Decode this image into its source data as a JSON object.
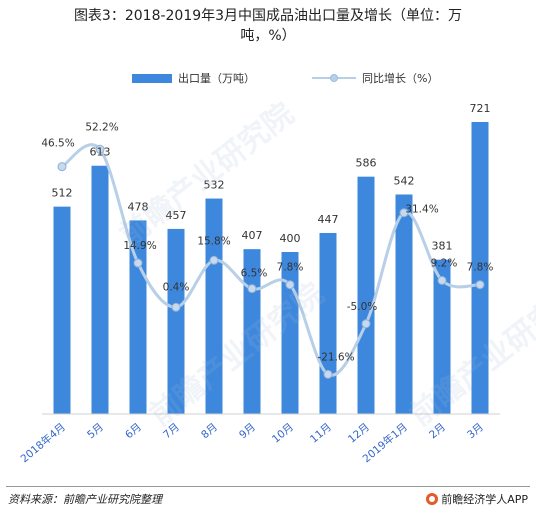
{
  "title_line1": "图表3：2018-2019年3月中国成品油出口量及增长（单位：万",
  "title_line2": "吨，%）",
  "legend": {
    "bar_label": "出口量（万吨）",
    "line_label": "同比增长（%）"
  },
  "source": "资料来源：前瞻产业研究院整理",
  "brand": "前瞻经济学人APP",
  "watermark": "前瞻产业研究院",
  "colors": {
    "bar": "#3d88dd",
    "line": "#b8cfe8",
    "marker_fill": "#c6d9ef",
    "marker_stroke": "#8fb0d8"
  },
  "chart_data": {
    "type": "bar",
    "categories": [
      "2018年4月",
      "5月",
      "6月",
      "7月",
      "8月",
      "9月",
      "10月",
      "11月",
      "12月",
      "2019年1月",
      "2月",
      "3月"
    ],
    "series": [
      {
        "name": "出口量（万吨）",
        "type": "bar",
        "values": [
          512,
          613,
          478,
          457,
          532,
          407,
          400,
          447,
          586,
          542,
          381,
          721
        ]
      },
      {
        "name": "同比增长（%）",
        "type": "line",
        "values": [
          46.5,
          52.2,
          14.9,
          0.4,
          15.8,
          6.5,
          7.8,
          -21.6,
          -5.0,
          31.4,
          9.2,
          7.8
        ]
      }
    ],
    "bar_labels": [
      "512",
      "613",
      "478",
      "457",
      "532",
      "407",
      "400",
      "447",
      "586",
      "542",
      "381",
      "721"
    ],
    "line_labels": [
      "46.5%",
      "52.2%",
      "14.9%",
      "0.4%",
      "15.8%",
      "6.5%",
      "7.8%",
      "-21.6%",
      "-5.0%",
      "31.4%",
      "9.2%",
      "7.8%"
    ],
    "bar_ylim": [
      0,
      800
    ],
    "line_ylim": [
      -30,
      70
    ],
    "grid": false
  }
}
